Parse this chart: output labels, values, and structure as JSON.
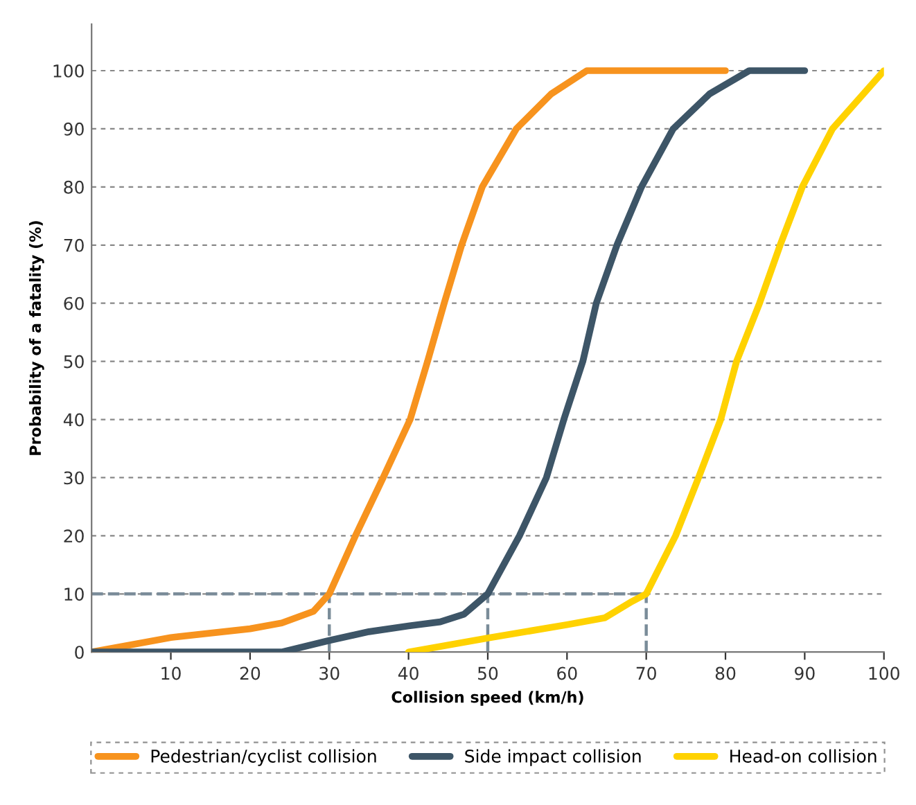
{
  "chart_data": {
    "type": "line",
    "xlabel": "Collision speed (km/h)",
    "ylabel": "Probability of a fatality (%)",
    "xlim": [
      0,
      100
    ],
    "xticks": [
      10,
      20,
      30,
      40,
      50,
      60,
      70,
      80,
      90,
      100
    ],
    "ylim": [
      0,
      108
    ],
    "yticks": [
      0,
      10,
      20,
      30,
      40,
      50,
      60,
      70,
      80,
      90,
      100
    ],
    "grid": "y",
    "legend": "bottom",
    "marker": "none",
    "line_style": "solid",
    "ref_lines": [
      {
        "axis": "y",
        "value": 10,
        "color": "#7a8c99",
        "line_style": "dashed"
      },
      {
        "axis": "x",
        "value": 30,
        "color": "#7a8c99",
        "line_style": "dashed"
      },
      {
        "axis": "x",
        "value": 50,
        "color": "#7a8c99",
        "line_style": "dashed"
      },
      {
        "axis": "x",
        "value": 70,
        "color": "#7a8c99",
        "line_style": "dashed"
      }
    ],
    "series": [
      {
        "name": "Pedestrian/cyclist collision",
        "color": "#f7931e",
        "x": [
          0,
          10,
          20,
          24,
          28,
          30,
          33.3,
          36.8,
          40.2,
          42.4,
          44.5,
          46.7,
          49.3,
          53.6,
          58,
          62.5,
          70,
          80
        ],
        "values": [
          0,
          2.5,
          4,
          5,
          7,
          10,
          20,
          30,
          40,
          50,
          60,
          70,
          80,
          90,
          96,
          100,
          100,
          100
        ]
      },
      {
        "name": "Side impact collision",
        "color": "#3d5567",
        "x": [
          0,
          24,
          30,
          35,
          40,
          44,
          47,
          50,
          54,
          57.4,
          59.6,
          62,
          63.7,
          66.3,
          69.4,
          73.4,
          78,
          83,
          90
        ],
        "values": [
          0,
          0,
          2,
          3.5,
          4.5,
          5.2,
          6.5,
          10,
          20,
          30,
          40,
          50,
          60,
          70,
          80,
          90,
          96,
          100,
          100
        ]
      },
      {
        "name": "Head-on collision",
        "color": "#ffd200",
        "x": [
          40,
          50,
          60,
          64.8,
          68.2,
          70,
          73.7,
          76.6,
          79.4,
          81.4,
          84.3,
          86.9,
          89.7,
          93.5,
          100
        ],
        "values": [
          0,
          2.4,
          4.7,
          5.9,
          8.7,
          10,
          20,
          30,
          40,
          50,
          60,
          70,
          80,
          90,
          100
        ]
      }
    ]
  }
}
